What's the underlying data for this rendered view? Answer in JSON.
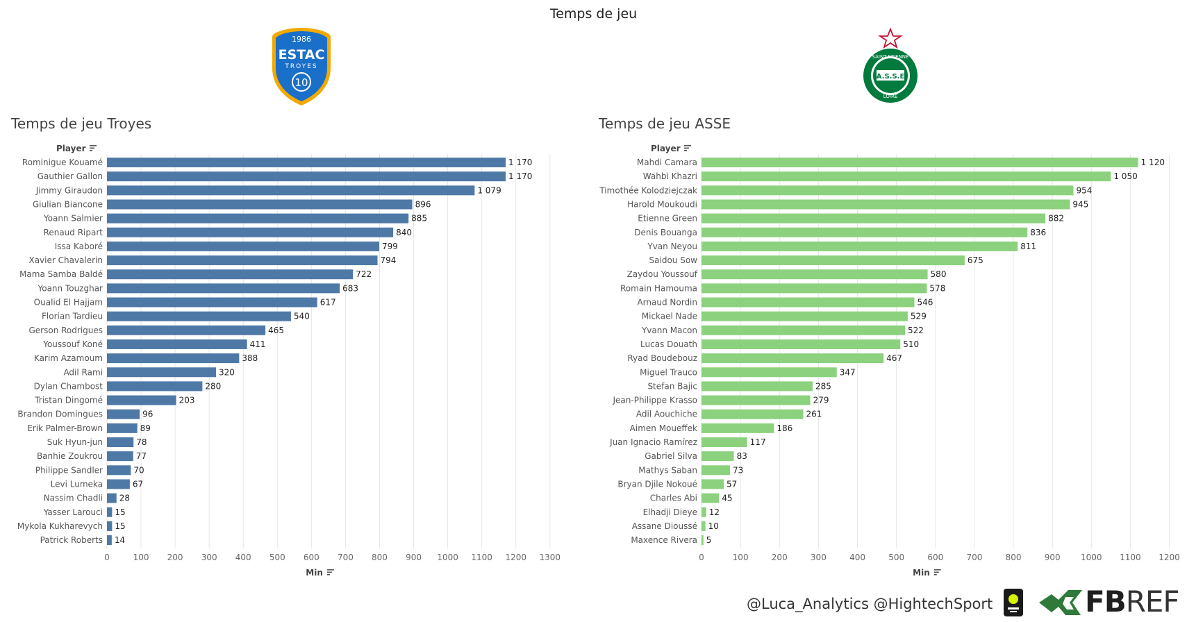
{
  "title": "Temps de jeu",
  "footer": {
    "credit": "@Luca_Analytics @HightechSport",
    "fbref_fb": "FB",
    "fbref_ref": "REF"
  },
  "logos": {
    "troyes": {
      "year": "1986",
      "name": "ESTAC",
      "city": "TROYES",
      "number": "10"
    },
    "asse": {
      "top": "SAINT-ETIENNE",
      "center": "A.S.S.E",
      "bottom": "LOIRE"
    }
  },
  "colors": {
    "troyes_bar": "#4e79a7",
    "asse_bar": "#8cd17d",
    "grid": "#e6e6e6"
  },
  "chart_data": [
    {
      "type": "bar",
      "orientation": "horizontal",
      "title": "Temps de jeu Troyes",
      "category_header": "Player",
      "xlabel": "Min",
      "xlim": [
        0,
        1300
      ],
      "xticks": [
        0,
        100,
        200,
        300,
        400,
        500,
        600,
        700,
        800,
        900,
        1000,
        1100,
        1200,
        1300
      ],
      "categories": [
        "Rominigue Kouamé",
        "Gauthier Gallon",
        "Jimmy Giraudon",
        "Giulian Biancone",
        "Yoann Salmier",
        "Renaud Ripart",
        "Issa Kaboré",
        "Xavier Chavalerin",
        "Mama Samba Baldé",
        "Yoann Touzghar",
        "Oualid El Hajjam",
        "Florian Tardieu",
        "Gerson Rodrigues",
        "Youssouf Koné",
        "Karim Azamoum",
        "Adil Rami",
        "Dylan Chambost",
        "Tristan Dingomé",
        "Brandon Domingues",
        "Erik Palmer-Brown",
        "Suk Hyun-jun",
        "Banhie Zoukrou",
        "Philippe Sandler",
        "Levi Lumeka",
        "Nassim Chadli",
        "Yasser Larouci",
        "Mykola Kukharevych",
        "Patrick Roberts"
      ],
      "values": [
        1170,
        1170,
        1079,
        896,
        885,
        840,
        799,
        794,
        722,
        683,
        617,
        540,
        465,
        411,
        388,
        320,
        280,
        203,
        96,
        89,
        78,
        77,
        70,
        67,
        28,
        15,
        15,
        14
      ],
      "labels": [
        "1 170",
        "1 170",
        "1 079",
        "896",
        "885",
        "840",
        "799",
        "794",
        "722",
        "683",
        "617",
        "540",
        "465",
        "411",
        "388",
        "320",
        "280",
        "203",
        "96",
        "89",
        "78",
        "77",
        "70",
        "67",
        "28",
        "15",
        "15",
        "14"
      ]
    },
    {
      "type": "bar",
      "orientation": "horizontal",
      "title": "Temps de jeu ASSE",
      "category_header": "Player",
      "xlabel": "Min",
      "xlim": [
        0,
        1200
      ],
      "xticks": [
        0,
        100,
        200,
        300,
        400,
        500,
        600,
        700,
        800,
        900,
        1000,
        1100,
        1200
      ],
      "categories": [
        "Mahdi Camara",
        "Wahbi Khazri",
        "Timothée Kolodziejczak",
        "Harold Moukoudi",
        "Etienne Green",
        "Denis Bouanga",
        "Yvan Neyou",
        "Saidou Sow",
        "Zaydou Youssouf",
        "Romain Hamouma",
        "Arnaud Nordin",
        "Mickael Nade",
        "Yvann Macon",
        "Lucas Douath",
        "Ryad Boudebouz",
        "Miguel Trauco",
        "Stefan Bajic",
        "Jean-Philippe Krasso",
        "Adil Aouchiche",
        "Aimen Moueffek",
        "Juan Ignacio Ramírez",
        "Gabriel Silva",
        "Mathys Saban",
        "Bryan Djile Nokoué",
        "Charles Abi",
        "Elhadji Dieye",
        "Assane Dioussé",
        "Maxence Rivera"
      ],
      "values": [
        1120,
        1050,
        954,
        945,
        882,
        836,
        811,
        675,
        580,
        578,
        546,
        529,
        522,
        510,
        467,
        347,
        285,
        279,
        261,
        186,
        117,
        83,
        73,
        57,
        45,
        12,
        10,
        5
      ],
      "labels": [
        "1 120",
        "1 050",
        "954",
        "945",
        "882",
        "836",
        "811",
        "675",
        "580",
        "578",
        "546",
        "529",
        "522",
        "510",
        "467",
        "347",
        "285",
        "279",
        "261",
        "186",
        "117",
        "83",
        "73",
        "57",
        "45",
        "12",
        "10",
        "5"
      ]
    }
  ]
}
